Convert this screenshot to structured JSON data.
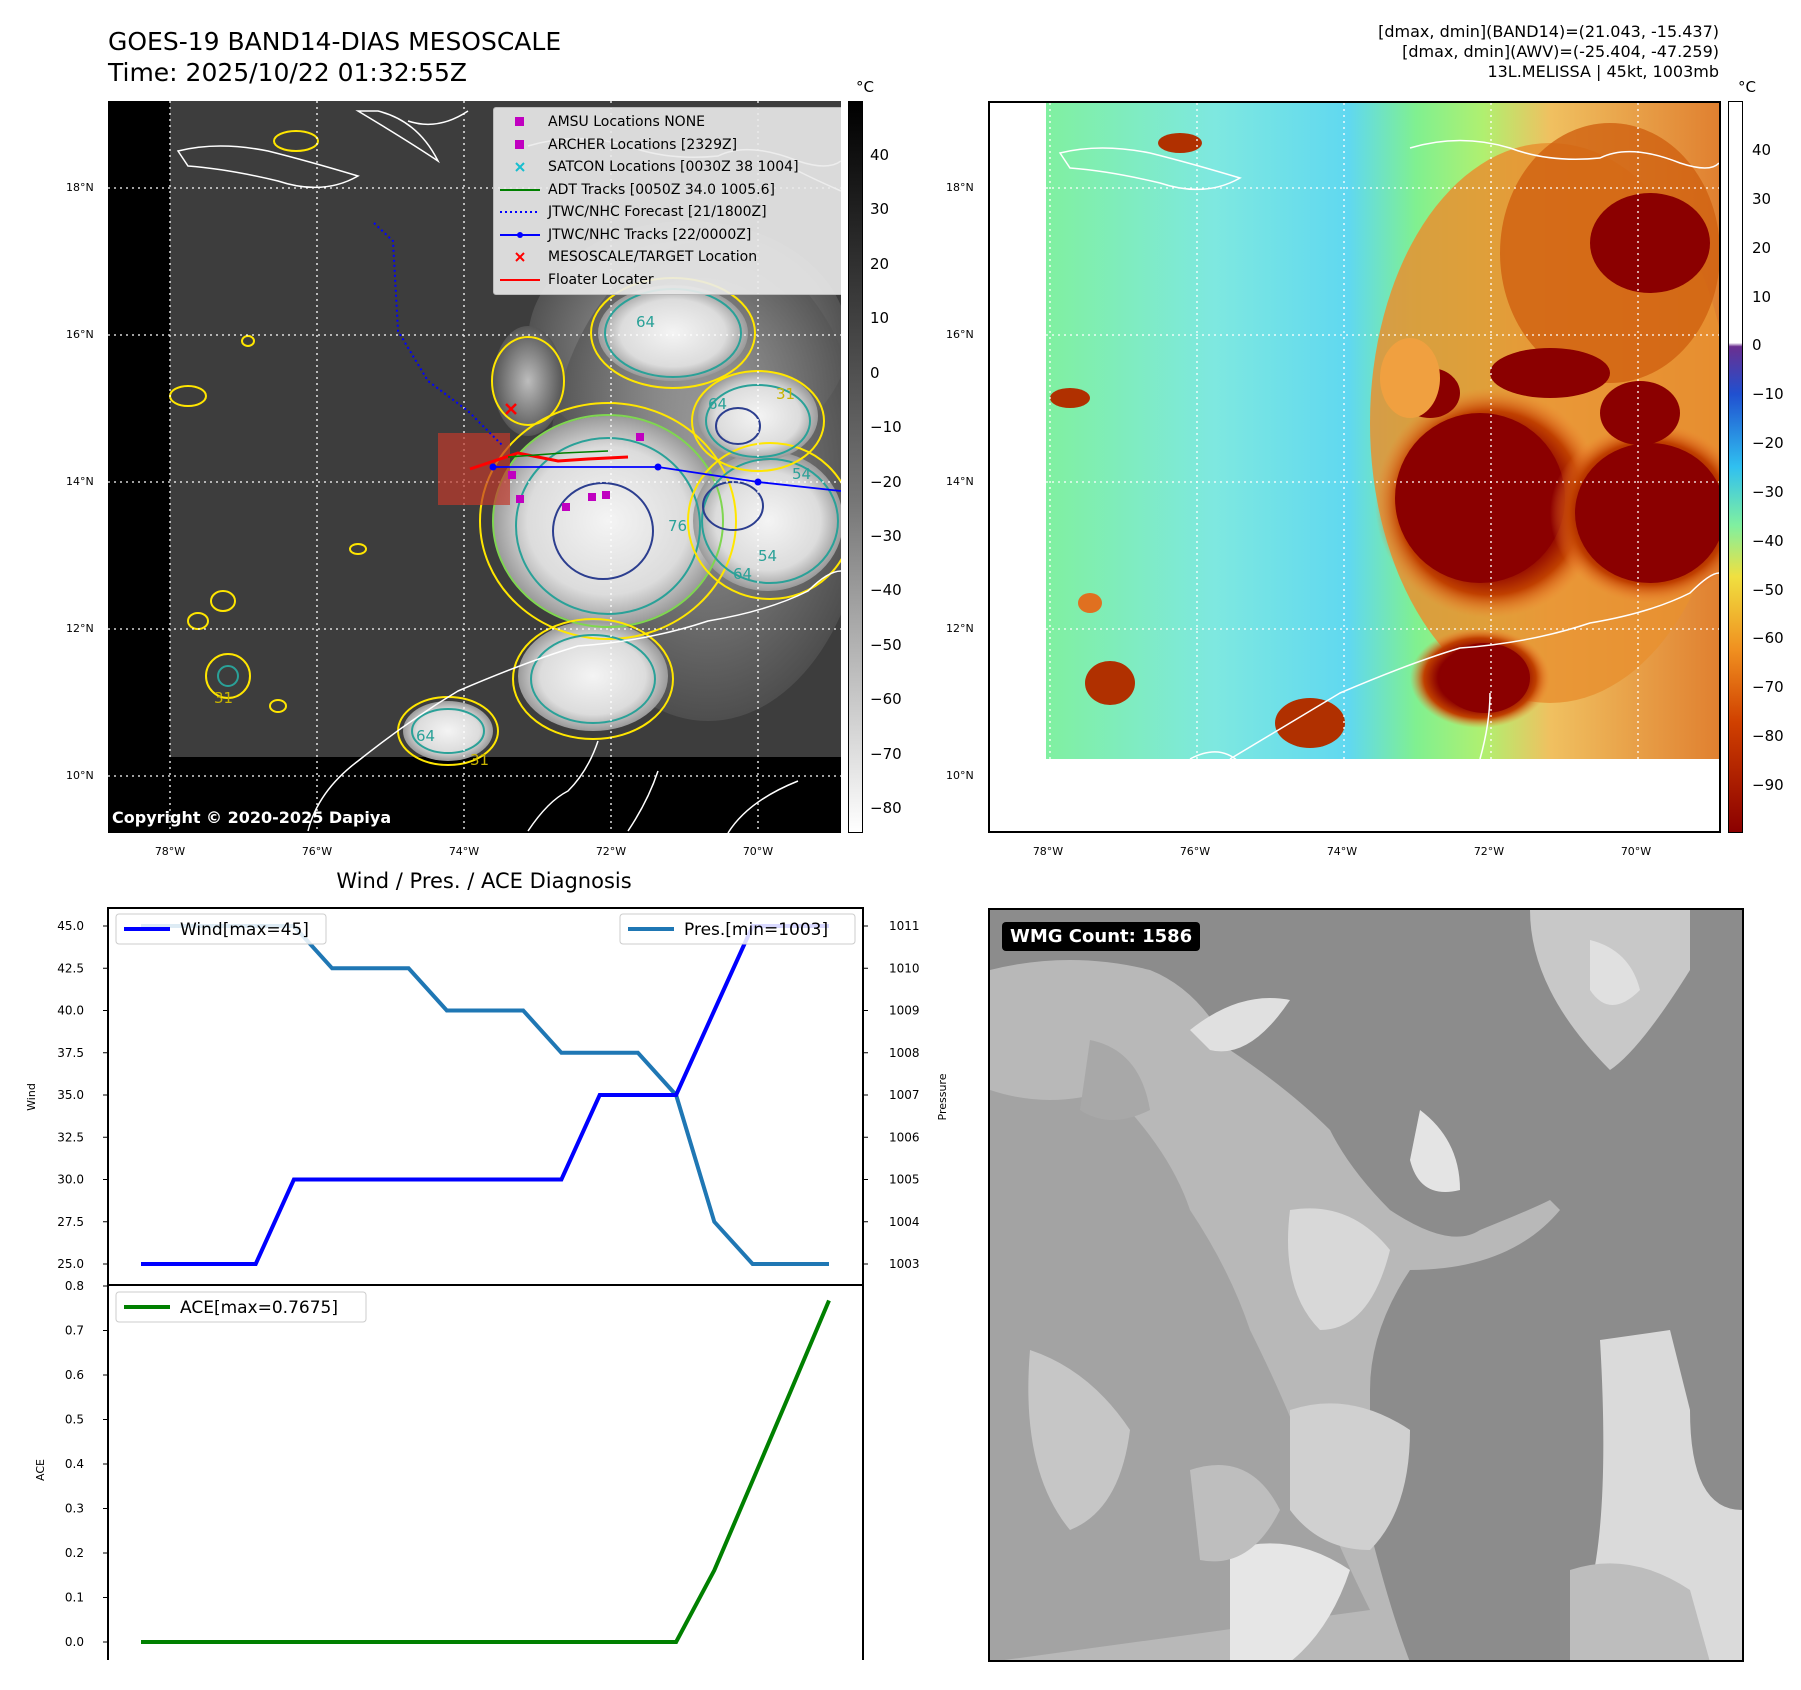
{
  "header": {
    "title_line1": "GOES-19 BAND14-DIAS MESOSCALE",
    "title_line2": "Time: 2025/10/22 01:32:55Z",
    "right_line1": "[dmax, dmin](BAND14)=(21.043, -15.437)",
    "right_line2": "[dmax, dmin](AWV)=(-25.404, -47.259)",
    "right_line3": "13L.MELISSA | 45kt, 1003mb"
  },
  "maps": {
    "lat_labels": [
      "18°N",
      "16°N",
      "14°N",
      "12°N",
      "10°N"
    ],
    "lon_labels": [
      "78°W",
      "76°W",
      "74°W",
      "72°W",
      "70°W"
    ],
    "copyright": "Copyright © 2020-2025 Dapiya",
    "legend": [
      {
        "label": "AMSU Locations NONE",
        "symbol": "square",
        "color": "#c000c0"
      },
      {
        "label": "ARCHER Locations [2329Z]",
        "symbol": "square",
        "color": "#c000c0"
      },
      {
        "label": "SATCON Locations [0030Z 38 1004]",
        "symbol": "x",
        "color": "#17becf"
      },
      {
        "label": "ADT Tracks [0050Z 34.0 1005.6]",
        "symbol": "line",
        "color": "#008000"
      },
      {
        "label": "JTWC/NHC Forecast [21/1800Z]",
        "symbol": "dotted",
        "color": "#0000ff"
      },
      {
        "label": "JTWC/NHC Tracks [22/0000Z]",
        "symbol": "line-dot",
        "color": "#0000ff"
      },
      {
        "label": "MESOSCALE/TARGET Location",
        "symbol": "x",
        "color": "#ff0000"
      },
      {
        "label": "Floater Locater",
        "symbol": "line",
        "color": "#ff0000"
      }
    ],
    "ir_colorbar": {
      "unit": "°C",
      "ticks": [
        "40",
        "30",
        "20",
        "10",
        "0",
        "−10",
        "−20",
        "−30",
        "−40",
        "−50",
        "−60",
        "−70",
        "−80"
      ]
    },
    "awv_colorbar": {
      "unit": "°C",
      "ticks": [
        "40",
        "30",
        "20",
        "10",
        "0",
        "−10",
        "−20",
        "−30",
        "−40",
        "−50",
        "−60",
        "−70",
        "−80",
        "−90"
      ]
    },
    "contour_labels": [
      "64",
      "64",
      "54",
      "31",
      "76",
      "64",
      "54",
      "64",
      "31",
      "31"
    ]
  },
  "wmg": {
    "badge": "WMG Count: 1586"
  },
  "chart_data": [
    {
      "type": "line",
      "title": "Wind / Pres. / ACE Diagnosis",
      "ylabel": "Wind",
      "ylabel_right": "Pressure",
      "ylim": [
        25,
        45
      ],
      "ylim_right": [
        1003,
        1011
      ],
      "yticks": [
        "45.0",
        "42.5",
        "40.0",
        "37.5",
        "35.0",
        "32.5",
        "30.0",
        "27.5",
        "25.0"
      ],
      "yticks_right": [
        "1011",
        "1010",
        "1009",
        "1008",
        "1007",
        "1006",
        "1005",
        "1004",
        "1003"
      ],
      "x": [
        0,
        1,
        2,
        3,
        4,
        5,
        6,
        7,
        8,
        9,
        10,
        11,
        12,
        13,
        14,
        15,
        16,
        17,
        18
      ],
      "series": [
        {
          "name": "Wind[max=45]",
          "axis": "left",
          "color": "#0000ff",
          "values": [
            25,
            25,
            25,
            25,
            30,
            30,
            30,
            30,
            30,
            30,
            30,
            30,
            35,
            35,
            35,
            40,
            45,
            45,
            45
          ]
        },
        {
          "name": "Pres.[min=1003]",
          "axis": "right",
          "color": "#1f77b4",
          "values": [
            1011,
            1011,
            1011,
            1011,
            1011,
            1010,
            1010,
            1010,
            1009,
            1009,
            1009,
            1008,
            1008,
            1008,
            1007,
            1004,
            1003,
            1003,
            1003
          ]
        }
      ],
      "legend": [
        "top-left",
        "top-right"
      ]
    },
    {
      "type": "line",
      "ylabel": "ACE",
      "ylim": [
        0,
        0.8
      ],
      "yticks": [
        "0.8",
        "0.7",
        "0.6",
        "0.5",
        "0.4",
        "0.3",
        "0.2",
        "0.1",
        "0.0"
      ],
      "x": [
        0,
        1,
        2,
        3,
        4,
        5,
        6,
        7,
        8,
        9,
        10,
        11,
        12,
        13,
        14,
        15,
        16,
        17,
        18
      ],
      "series": [
        {
          "name": "ACE[max=0.7675]",
          "color": "#008000",
          "values": [
            0,
            0,
            0,
            0,
            0,
            0,
            0,
            0,
            0,
            0,
            0,
            0,
            0,
            0,
            0,
            0.1612,
            0.3627,
            0.5642,
            0.7675
          ]
        }
      ],
      "legend": "top-left"
    }
  ]
}
